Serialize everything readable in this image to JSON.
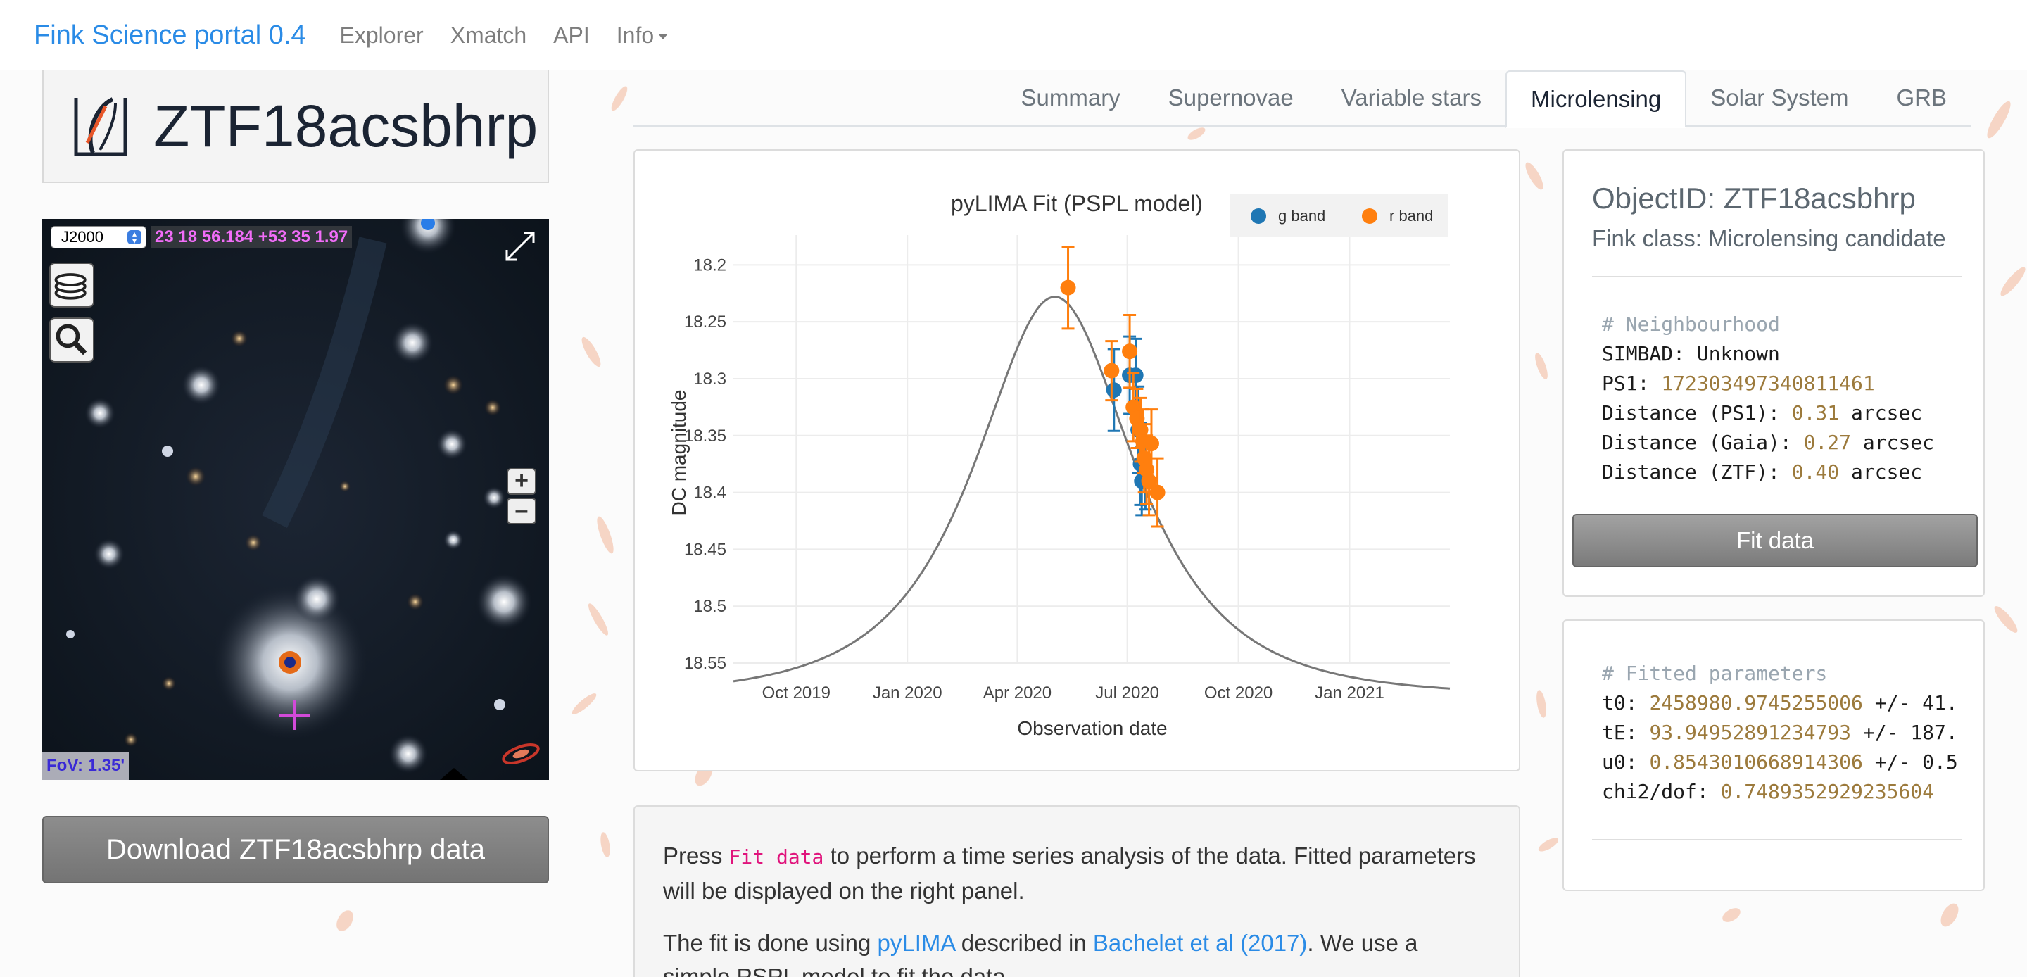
{
  "navbar": {
    "brand": "Fink Science portal 0.4",
    "links": [
      "Explorer",
      "Xmatch",
      "API",
      "Info"
    ]
  },
  "object": {
    "name": "ZTF18acsbhrp",
    "download_label": "Download ZTF18acsbhrp data"
  },
  "aladin": {
    "frame": "J2000",
    "coords": "23 18 56.184 +53 35 1.97",
    "fov": "FoV: 1.35'",
    "zoom_in": "+",
    "zoom_out": "–"
  },
  "tabs": [
    "Summary",
    "Supernovae",
    "Variable stars",
    "Microlensing",
    "Solar System",
    "GRB"
  ],
  "active_tab": "Microlensing",
  "chart_data": {
    "type": "scatter",
    "title": "pyLIMA Fit (PSPL model)",
    "xlabel": "Observation date",
    "ylabel": "DC magnitude",
    "x_ticks": [
      "Oct 2019",
      "Jan 2020",
      "Apr 2020",
      "Jul 2020",
      "Oct 2020",
      "Jan 2021"
    ],
    "y_ticks": [
      "18.2",
      "18.25",
      "18.3",
      "18.35",
      "18.4",
      "18.45",
      "18.5",
      "18.55"
    ],
    "ylim": [
      18.55,
      18.18
    ],
    "xlim": [
      "2019-08-10",
      "2021-03-25"
    ],
    "y_reversed": true,
    "grid": true,
    "legend_position": "top-right",
    "colors": {
      "g": "#1f77b4",
      "r": "#ff7f0e",
      "fit": "#777777"
    },
    "series": [
      {
        "name": "g band",
        "points": [
          {
            "x": "2020-06-20",
            "y": 18.31,
            "err": 0.036
          },
          {
            "x": "2020-07-03",
            "y": 18.297,
            "err": 0.034
          },
          {
            "x": "2020-07-08",
            "y": 18.297,
            "err": 0.032
          },
          {
            "x": "2020-07-10",
            "y": 18.345,
            "err": 0.038
          },
          {
            "x": "2020-07-12",
            "y": 18.375,
            "err": 0.036
          },
          {
            "x": "2020-07-13",
            "y": 18.39,
            "err": 0.03
          },
          {
            "x": "2020-07-16",
            "y": 18.385,
            "err": 0.03
          }
        ]
      },
      {
        "name": "r band",
        "points": [
          {
            "x": "2020-05-13",
            "y": 18.22,
            "err": 0.036
          },
          {
            "x": "2020-06-18",
            "y": 18.293,
            "err": 0.026
          },
          {
            "x": "2020-07-03",
            "y": 18.276,
            "err": 0.032
          },
          {
            "x": "2020-07-06",
            "y": 18.325,
            "err": 0.03
          },
          {
            "x": "2020-07-09",
            "y": 18.335,
            "err": 0.026
          },
          {
            "x": "2020-07-12",
            "y": 18.345,
            "err": 0.028
          },
          {
            "x": "2020-07-14",
            "y": 18.355,
            "err": 0.028
          },
          {
            "x": "2020-07-15",
            "y": 18.37,
            "err": 0.03
          },
          {
            "x": "2020-07-17",
            "y": 18.38,
            "err": 0.03
          },
          {
            "x": "2020-07-19",
            "y": 18.39,
            "err": 0.03
          },
          {
            "x": "2020-07-21",
            "y": 18.357,
            "err": 0.03
          },
          {
            "x": "2020-07-26",
            "y": 18.4,
            "err": 0.03
          }
        ]
      }
    ],
    "fit_model": {
      "type": "PSPL",
      "t_peak": "2020-05-02",
      "tE_days": 94,
      "y_base": 18.566,
      "y_peak": 18.228
    }
  },
  "description": {
    "p1_pre": "Press ",
    "p1_code": "Fit data",
    "p1_post": " to perform a time series analysis of the data. Fitted parameters will be displayed on the right panel.",
    "p2_pre": "The fit is done using ",
    "p2_link1": "pyLIMA",
    "p2_mid": " described in ",
    "p2_link2": "Bachelet et al (2017)",
    "p2_post": ". We use a simple PSPL model to fit the data."
  },
  "info": {
    "object_id": "ObjectID: ZTF18acsbhrp",
    "fink_class": "Fink class: Microlensing candidate",
    "neighbourhood_comment": "# Neighbourhood",
    "simbad_label": "SIMBAD: ",
    "simbad_value": "Unknown",
    "ps1_label": "PS1: ",
    "ps1_value": "172303497340811461",
    "dist_ps1_label": "Distance (PS1): ",
    "dist_ps1_value": "0.31",
    "dist_gaia_label": "Distance (Gaia): ",
    "dist_gaia_value": "0.27",
    "dist_ztf_label": "Distance (ZTF): ",
    "dist_ztf_value": "0.40",
    "unit": " arcsec",
    "fit_button": "Fit data"
  },
  "params": {
    "comment": "# Fitted parameters",
    "t0_label": "t0: ",
    "t0_value": "2458980.9745255006",
    "t0_err": " +/- 41.",
    "tE_label": "tE: ",
    "tE_value": "93.94952891234793",
    "tE_err": " +/- 187.",
    "u0_label": "u0: ",
    "u0_value": "0.8543010668914306",
    "u0_err": " +/- 0.5",
    "chi2_label": "chi2/dof: ",
    "chi2_value": "0.7489352929235604"
  }
}
